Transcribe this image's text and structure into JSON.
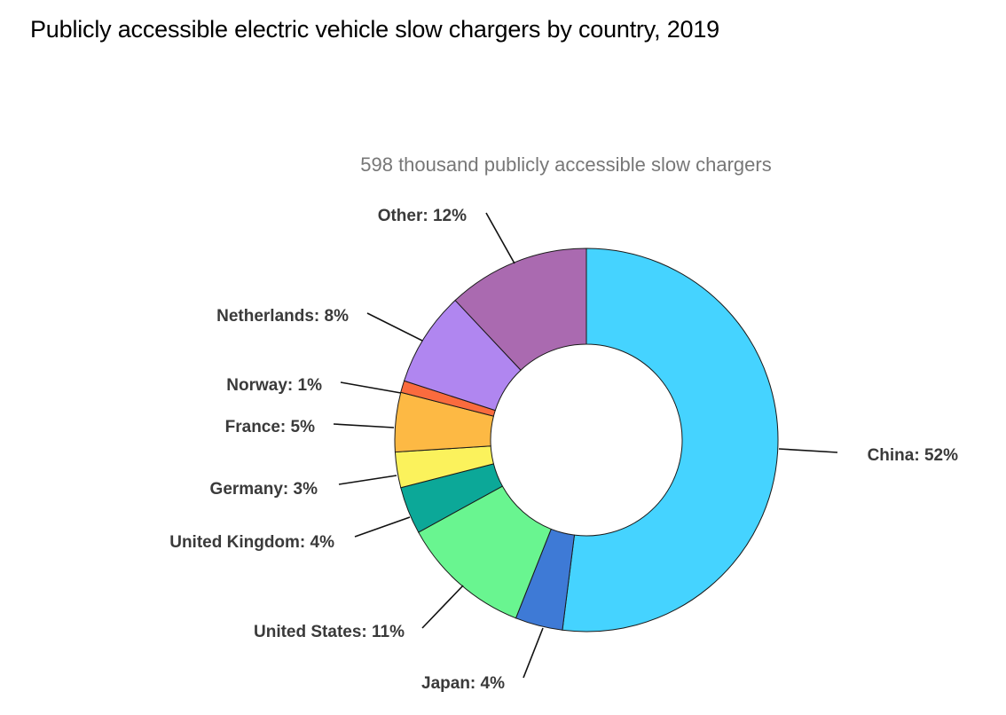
{
  "chart_data": {
    "type": "pie",
    "title": "Publicly accessible electric vehicle slow chargers by country, 2019",
    "subtitle": "598 thousand publicly accessible slow chargers",
    "donut": true,
    "unit": "%",
    "slices": [
      {
        "label": "China: 52%",
        "name": "China",
        "value": 52,
        "color": "#45d3ff"
      },
      {
        "label": "Japan: 4%",
        "name": "Japan",
        "value": 4,
        "color": "#3e7ad6"
      },
      {
        "label": "United States: 11%",
        "name": "United States",
        "value": 11,
        "color": "#69f590"
      },
      {
        "label": "United Kingdom: 4%",
        "name": "United Kingdom",
        "value": 4,
        "color": "#0ca898"
      },
      {
        "label": "Germany: 3%",
        "name": "Germany",
        "value": 3,
        "color": "#fbf25c"
      },
      {
        "label": "France: 5%",
        "name": "France",
        "value": 5,
        "color": "#fdb944"
      },
      {
        "label": "Norway: 1%",
        "name": "Norway",
        "value": 1,
        "color": "#fa6b3e"
      },
      {
        "label": "Netherlands: 8%",
        "name": "Netherlands",
        "value": 8,
        "color": "#b086f0"
      },
      {
        "label": "Other: 12%",
        "name": "Other",
        "value": 12,
        "color": "#aa6ab0"
      }
    ]
  }
}
